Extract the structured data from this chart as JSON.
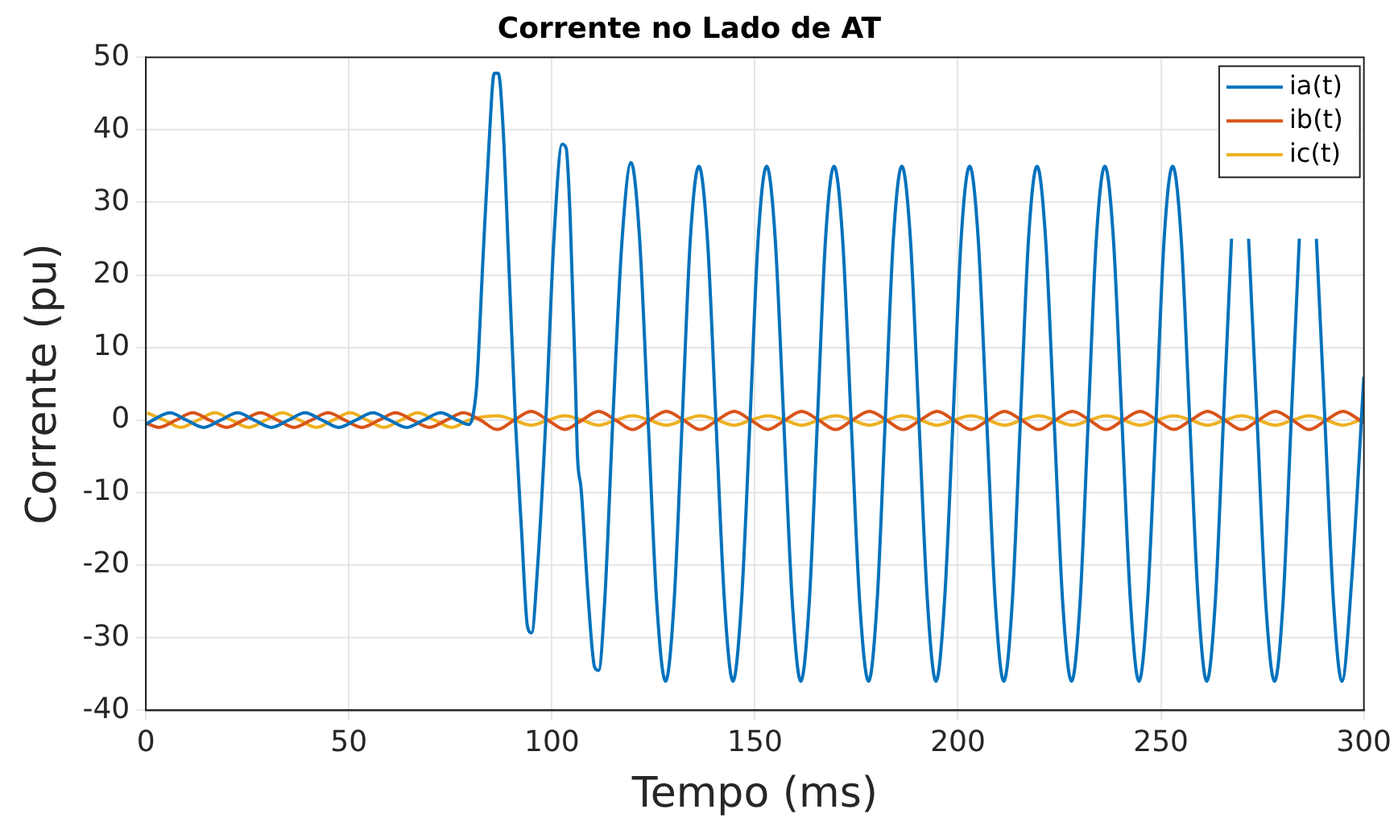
{
  "chart_data": {
    "type": "line",
    "title": "Corrente no Lado de AT",
    "xlabel": "Tempo (ms)",
    "ylabel": "Corrente (pu)",
    "xlim": [
      0,
      300
    ],
    "xticks": [
      0,
      50,
      100,
      150,
      200,
      250,
      300
    ],
    "ylim": [
      -40,
      50
    ],
    "yticks": [
      -40,
      -30,
      -20,
      -10,
      0,
      10,
      20,
      30,
      40,
      50
    ],
    "grid": true,
    "legend": "top right",
    "marker": "none",
    "line_style": "solid",
    "series": [
      {
        "name": "ia(t)",
        "color": "#0072bd",
        "x": [
          0,
          1.7,
          5.9,
          10,
          14.2,
          18.4,
          22.6,
          26.7,
          30.9,
          35.1,
          39.2,
          43.4,
          47.5,
          51.7,
          55.9,
          60,
          64.2,
          68.4,
          72.6,
          76.7,
          79.5,
          80.5,
          81.5,
          83,
          84.5,
          85.8,
          86.8,
          88,
          89.5,
          91,
          92.5,
          94,
          95,
          96.5,
          98.5,
          100.5,
          102.5,
          103.5,
          104.5,
          105.8,
          106.3,
          107.2,
          109,
          110.5,
          111.5,
          113,
          115,
          117.3,
          119.5,
          121.6,
          123.7,
          125.8,
          128,
          130.1,
          132.1,
          134.1,
          136.2,
          138.3,
          140.4,
          142.5,
          144.6,
          146.7,
          148.8,
          150.8,
          152.9,
          155,
          157.1,
          159.2,
          161.3,
          163.4,
          165.4,
          167.4,
          169.5,
          171.6,
          173.7,
          175.8,
          178,
          180.1,
          182.1,
          184.1,
          186.2,
          188.3,
          190.4,
          192.5,
          194.6,
          196.7,
          198.8,
          200.8,
          202.9,
          205,
          207.1,
          209.2,
          211.3,
          213.4,
          215.4,
          217.4,
          219.5,
          221.6,
          223.7,
          225.8,
          228,
          230.1,
          232.1,
          234.1,
          236.2,
          238.3,
          240.4,
          242.5,
          244.6,
          246.7,
          248.8,
          250.8,
          252.9,
          255,
          257.1,
          259.2,
          261.3,
          263.4,
          265.4,
          267.4,
          269.5,
          271.6,
          273.7,
          275.8,
          278,
          280.1,
          282.1,
          284.1,
          286.2,
          288.3,
          290.4,
          292.5,
          294.6,
          297,
          300
        ],
        "values": [
          -0.6,
          0,
          1,
          0,
          -1,
          0,
          1,
          0,
          -1,
          0,
          1,
          0,
          -1,
          0,
          1,
          0,
          -1,
          0,
          1,
          0,
          -0.6,
          0.5,
          5,
          22,
          38,
          47.8,
          47.8,
          40,
          20,
          0,
          -15,
          -28.5,
          -29.3,
          -20,
          0,
          25,
          38,
          37.5,
          28,
          5,
          -5,
          -9.5,
          -25,
          -34,
          -34.5,
          -25,
          0,
          25,
          35.5,
          25,
          0,
          -25,
          -36,
          -25,
          0,
          25,
          35,
          25,
          0,
          -25,
          -36,
          -25,
          0,
          25,
          35,
          25,
          0,
          -25,
          -36,
          -25,
          0,
          25,
          35,
          25,
          0,
          -25,
          -36,
          -25,
          0,
          25,
          35,
          25,
          0,
          -25,
          -36,
          -25,
          0,
          25,
          35,
          25,
          0,
          -25,
          -36,
          -25,
          0,
          25,
          35,
          25,
          0,
          -25,
          -36,
          -25,
          0,
          25,
          35,
          25,
          0,
          -25,
          -36,
          -25,
          0,
          25,
          35,
          25,
          0,
          -25,
          -36,
          -25,
          0,
          25,
          null,
          25,
          0,
          -25,
          -36,
          -25,
          0,
          25,
          null,
          25,
          0,
          -25,
          -36,
          -22,
          6
        ]
      },
      {
        "name": "ib(t)",
        "color": "#d95319",
        "x": [
          0,
          3.2,
          7.4,
          11.5,
          15.7,
          19.9,
          24,
          28.2,
          32.4,
          36.5,
          40.7,
          44.9,
          49,
          53.2,
          57.4,
          61.5,
          65.7,
          69.9,
          74,
          78.2,
          82.4,
          86.5,
          90.7,
          94.9,
          99,
          103.2,
          107.4,
          111.5,
          115.7,
          119.9,
          124,
          128.2,
          132.4,
          136.5,
          140.7,
          144.9,
          149,
          153.2,
          157.4,
          161.5,
          165.7,
          169.9,
          174,
          178.2,
          182.4,
          186.5,
          190.7,
          194.9,
          199,
          203.2,
          207.4,
          211.5,
          215.7,
          219.9,
          224,
          228.2,
          232.4,
          236.5,
          240.7,
          244.9,
          249,
          253.2,
          257.4,
          261.5,
          265.7,
          269.9,
          274,
          278.2,
          282.4,
          286.5,
          290.7,
          294.9,
          299,
          300
        ],
        "values": [
          -0.4,
          -1,
          0,
          1,
          0,
          -1,
          0,
          1,
          0,
          -1,
          0,
          1,
          0,
          -1,
          0,
          1,
          0,
          -1,
          0,
          1,
          0,
          -1.3,
          0,
          1.2,
          0,
          -1.3,
          0,
          1.2,
          0,
          -1.3,
          0,
          1.2,
          0,
          -1.3,
          0,
          1.2,
          0,
          -1.3,
          0,
          1.2,
          0,
          -1.3,
          0,
          1.2,
          0,
          -1.3,
          0,
          1.2,
          0,
          -1.3,
          0,
          1.2,
          0,
          -1.3,
          0,
          1.2,
          0,
          -1.3,
          0,
          1.2,
          0,
          -1.3,
          0,
          1.2,
          0,
          -1.3,
          0,
          1.2,
          0,
          -1.3,
          0,
          1.2,
          0,
          -0.3
        ]
      },
      {
        "name": "ic(t)",
        "color": "#edb120",
        "x": [
          0.3,
          4.5,
          8.6,
          12.8,
          17,
          21.1,
          25.3,
          29.5,
          33.6,
          37.8,
          42,
          46.1,
          50.3,
          54.5,
          58.6,
          62.8,
          67,
          71.1,
          75.3,
          79.5,
          82.4,
          86.5,
          90.7,
          94.9,
          99,
          103.2,
          107.4,
          111.5,
          115.7,
          119.9,
          124,
          128.2,
          132.4,
          136.5,
          140.7,
          144.9,
          149,
          153.2,
          157.4,
          161.5,
          165.7,
          169.9,
          174,
          178.2,
          182.4,
          186.5,
          190.7,
          194.9,
          199,
          203.2,
          207.4,
          211.5,
          215.7,
          219.9,
          224,
          228.2,
          232.4,
          236.5,
          240.7,
          244.9,
          249,
          253.2,
          257.4,
          261.5,
          265.7,
          269.9,
          274,
          278.2,
          282.4,
          286.5,
          290.7,
          294.9,
          299,
          300
        ],
        "values": [
          1,
          0,
          -1,
          0,
          1,
          0,
          -1,
          0,
          1,
          0,
          -1,
          0,
          1,
          0,
          -1,
          0,
          1,
          0,
          -1,
          0,
          0.4,
          0.6,
          0,
          -0.7,
          0,
          0.6,
          0,
          -0.7,
          0,
          0.6,
          0,
          -0.7,
          0,
          0.6,
          0,
          -0.7,
          0,
          0.6,
          0,
          -0.7,
          0,
          0.6,
          0,
          -0.7,
          0,
          0.6,
          0,
          -0.7,
          0,
          0.6,
          0,
          -0.7,
          0,
          0.6,
          0,
          -0.7,
          0,
          0.6,
          0,
          -0.7,
          0,
          0.6,
          0,
          -0.7,
          0,
          0.6,
          0,
          -0.7,
          0,
          0.6,
          0,
          -0.7,
          0,
          0.2
        ]
      }
    ]
  }
}
